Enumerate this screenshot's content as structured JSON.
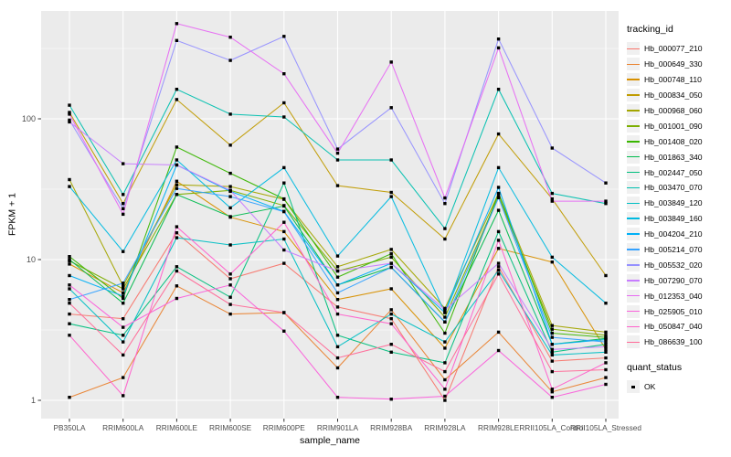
{
  "chart_data": {
    "type": "line",
    "title": "",
    "xlabel": "sample_name",
    "ylabel": "FPKM + 1",
    "x_categories": [
      "PB350LA",
      "RRIM600LA",
      "RRIM600LE",
      "RRIM600SE",
      "RRIM600PE",
      "RRIM901LA",
      "RRIM928BA",
      "RRIM928LA",
      "RRIM928LE",
      "RRII105LA_Control",
      "RRII105LA_Stressed"
    ],
    "y_scale": "log10",
    "y_ticks": [
      1,
      10,
      100
    ],
    "y_tick_labels": [
      "1",
      "10",
      "100"
    ],
    "y_minor_ticks": [
      3.162,
      31.62,
      316.2
    ],
    "ylim": [
      0.74,
      590
    ],
    "grid": true,
    "legend_position": "right",
    "point_shape": "filled-square",
    "point_color": "#000000",
    "series": [
      {
        "name": "Hb_000077_210",
        "color": "#F8766D",
        "values": [
          4.1,
          3.8,
          15.5,
          7.3,
          9.4,
          4.6,
          3.8,
          1.0,
          8.9,
          1.9,
          2.0
        ]
      },
      {
        "name": "Hb_000649_330",
        "color": "#EA8331",
        "values": [
          1.05,
          1.45,
          6.5,
          4.1,
          4.2,
          1.7,
          4.4,
          1.4,
          3.05,
          1.15,
          1.45
        ]
      },
      {
        "name": "Hb_000748_110",
        "color": "#D89000",
        "values": [
          9.3,
          5.8,
          36,
          20,
          15.8,
          5.2,
          6.2,
          2.35,
          12,
          9.6,
          2.3
        ]
      },
      {
        "name": "Hb_000834_050",
        "color": "#C09B00",
        "values": [
          111,
          25,
          137,
          65,
          130,
          33.5,
          30,
          14,
          78,
          27,
          7.7
        ]
      },
      {
        "name": "Hb_000968_060",
        "color": "#A3A500",
        "values": [
          37,
          6.5,
          34,
          33,
          26.8,
          8.9,
          11.8,
          4.5,
          29.5,
          3.4,
          3.05
        ]
      },
      {
        "name": "Hb_001001_090",
        "color": "#7CAE00",
        "values": [
          9.8,
          6.2,
          29,
          31,
          24.2,
          8.3,
          10.4,
          3.9,
          28,
          3.2,
          2.9
        ]
      },
      {
        "name": "Hb_001408_020",
        "color": "#39B600",
        "values": [
          10.5,
          5.3,
          63,
          41,
          27,
          7.5,
          11,
          3.0,
          29.5,
          3.0,
          2.8
        ]
      },
      {
        "name": "Hb_001863_340",
        "color": "#00BB4E",
        "values": [
          10,
          4.9,
          29,
          20.2,
          24,
          6.6,
          8.8,
          3.6,
          22.4,
          2.5,
          2.75
        ]
      },
      {
        "name": "Hb_002447_050",
        "color": "#00BF7D",
        "values": [
          3.5,
          2.9,
          8.9,
          5.4,
          35,
          2.9,
          2.2,
          1.85,
          15.8,
          2.2,
          2.5
        ]
      },
      {
        "name": "Hb_003470_070",
        "color": "#00C0AF",
        "values": [
          125,
          29,
          162,
          108,
          103,
          51,
          51,
          16.6,
          162,
          29.5,
          25
        ]
      },
      {
        "name": "Hb_003849_120",
        "color": "#00BFC4",
        "values": [
          6.2,
          2.6,
          14.3,
          12.7,
          14,
          2.4,
          4.1,
          2.6,
          8.4,
          2.1,
          2.2
        ]
      },
      {
        "name": "Hb_003849_160",
        "color": "#00BAE0",
        "values": [
          33,
          11.4,
          51,
          23.3,
          45,
          10.6,
          28,
          4.2,
          45,
          10.4,
          4.9
        ]
      },
      {
        "name": "Hb_004204_210",
        "color": "#00B0F6",
        "values": [
          7.7,
          5.5,
          47,
          30.5,
          22,
          6.6,
          9.4,
          4.2,
          32.6,
          2.5,
          2.7
        ]
      },
      {
        "name": "Hb_005214_070",
        "color": "#35A2FF",
        "values": [
          5.2,
          6.8,
          32,
          28,
          21.9,
          5.8,
          8.8,
          3.6,
          27.5,
          2.8,
          2.6
        ]
      },
      {
        "name": "Hb_005532_020",
        "color": "#9590FF",
        "values": [
          98,
          23,
          360,
          260,
          385,
          61,
          120,
          25,
          369,
          62,
          35
        ]
      },
      {
        "name": "Hb_007290_070",
        "color": "#C77CFF",
        "values": [
          95,
          48,
          47,
          31,
          11.7,
          8.3,
          9.4,
          4.4,
          9.4,
          2.3,
          2.4
        ]
      },
      {
        "name": "Hb_012353_040",
        "color": "#E76BF3",
        "values": [
          108,
          21,
          475,
          380,
          209,
          57,
          253,
          27.4,
          319,
          26,
          26
        ]
      },
      {
        "name": "Hb_025905_010",
        "color": "#FA62DB",
        "values": [
          6.6,
          3.3,
          5.3,
          6.6,
          3.1,
          1.05,
          1.02,
          1.07,
          2.26,
          1.05,
          1.3
        ]
      },
      {
        "name": "Hb_050847_040",
        "color": "#FF61CC",
        "values": [
          2.9,
          1.08,
          17.1,
          7.9,
          18.4,
          4.1,
          3.5,
          1.2,
          13.7,
          1.2,
          1.85
        ]
      },
      {
        "name": "Hb_086639_100",
        "color": "#FF6A98",
        "values": [
          4.9,
          2.1,
          8.3,
          4.8,
          4.2,
          2.0,
          2.5,
          1.6,
          7.9,
          1.6,
          1.65
        ]
      }
    ]
  },
  "legend": {
    "color_title": "tracking_id",
    "shape_title": "quant_status",
    "shape_items": [
      {
        "label": "OK"
      }
    ]
  },
  "theme": {
    "background": "#FFFFFF",
    "panel_bg": "#EBEBEB",
    "grid_color": "#FFFFFF",
    "tick_mark_color": "#333333",
    "tick_label_color": "#4D4D4D",
    "axis_title_color": "#000000",
    "legend_key_bg": "#F0F0F0"
  }
}
